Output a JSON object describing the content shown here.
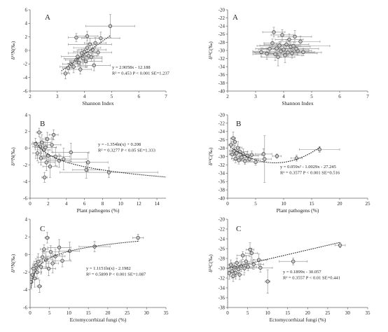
{
  "chart_data": [
    {
      "id": "nA",
      "type": "scatter",
      "panel_label": "A",
      "xlabel": "Shannon Index",
      "ylabel": "δ¹⁵N(‰)",
      "xlim": [
        2,
        7
      ],
      "ylim": [
        -6,
        6
      ],
      "xticks": [
        2,
        3,
        4,
        5,
        6,
        7
      ],
      "yticks": [
        -6,
        -4,
        -2,
        0,
        2,
        4,
        6
      ],
      "annotations": [
        "y = 2.9058x - 12.188",
        "R² = 0.453 P < 0.001 SE=1.237"
      ],
      "trend": {
        "kind": "linear",
        "a": 2.9058,
        "b": -12.188,
        "x_from": 3.15,
        "x_to": 4.95
      },
      "points": [
        {
          "x": 3.3,
          "y": -3.4,
          "xe": 0.15,
          "ye": 0.8
        },
        {
          "x": 3.4,
          "y": -2.6,
          "xe": 0.2,
          "ye": 0.7
        },
        {
          "x": 3.5,
          "y": -2.0,
          "xe": 0.3,
          "ye": 0.6
        },
        {
          "x": 3.6,
          "y": -2.4,
          "xe": 0.5,
          "ye": 0.9
        },
        {
          "x": 3.7,
          "y": -1.4,
          "xe": 0.4,
          "ye": 0.5
        },
        {
          "x": 3.75,
          "y": -0.9,
          "xe": 0.6,
          "ye": 1.0
        },
        {
          "x": 3.8,
          "y": -1.8,
          "xe": 0.3,
          "ye": 0.6
        },
        {
          "x": 3.85,
          "y": -2.8,
          "xe": 0.4,
          "ye": 0.7
        },
        {
          "x": 3.9,
          "y": -0.4,
          "xe": 0.5,
          "ye": 0.6
        },
        {
          "x": 3.95,
          "y": -1.2,
          "xe": 0.7,
          "ye": 0.8
        },
        {
          "x": 4.0,
          "y": -0.2,
          "xe": 0.4,
          "ye": 0.5
        },
        {
          "x": 4.05,
          "y": -1.6,
          "xe": 0.6,
          "ye": 0.9
        },
        {
          "x": 4.1,
          "y": 0.4,
          "xe": 0.5,
          "ye": 0.7
        },
        {
          "x": 4.15,
          "y": -0.8,
          "xe": 0.3,
          "ye": 0.5
        },
        {
          "x": 4.2,
          "y": 0.9,
          "xe": 0.8,
          "ye": 0.9
        },
        {
          "x": 4.25,
          "y": -1.0,
          "xe": 0.4,
          "ye": 0.6
        },
        {
          "x": 4.3,
          "y": 0.1,
          "xe": 0.5,
          "ye": 0.7
        },
        {
          "x": 4.35,
          "y": -2.2,
          "xe": 0.6,
          "ye": 0.8
        },
        {
          "x": 4.4,
          "y": 1.1,
          "xe": 0.4,
          "ye": 0.8
        },
        {
          "x": 4.5,
          "y": -0.3,
          "xe": 0.5,
          "ye": 0.5
        },
        {
          "x": 3.7,
          "y": 1.9,
          "xe": 0.3,
          "ye": 0.6
        },
        {
          "x": 4.1,
          "y": 2.1,
          "xe": 0.4,
          "ye": 0.7
        },
        {
          "x": 4.6,
          "y": 1.8,
          "xe": 0.7,
          "ye": 0.9
        },
        {
          "x": 4.95,
          "y": 3.6,
          "xe": 0.9,
          "ye": 1.7
        }
      ]
    },
    {
      "id": "cA",
      "type": "scatter",
      "panel_label": "A",
      "xlabel": "Shannon Index",
      "ylabel": "δ¹³C(‰)",
      "xlim": [
        2,
        7
      ],
      "ylim": [
        -40,
        -20
      ],
      "xticks": [
        2,
        3,
        4,
        5,
        6,
        7
      ],
      "yticks": [
        -40,
        -38,
        -36,
        -34,
        -32,
        -30,
        -28,
        -26,
        -24,
        -22,
        -20
      ],
      "annotations": [],
      "points": [
        {
          "x": 3.2,
          "y": -30.4,
          "xe": 0.3,
          "ye": 1.0
        },
        {
          "x": 3.4,
          "y": -30.8,
          "xe": 0.4,
          "ye": 1.4
        },
        {
          "x": 3.5,
          "y": -29.6,
          "xe": 0.5,
          "ye": 0.8
        },
        {
          "x": 3.6,
          "y": -28.2,
          "xe": 0.3,
          "ye": 1.0
        },
        {
          "x": 3.7,
          "y": -30.9,
          "xe": 0.8,
          "ye": 1.6
        },
        {
          "x": 3.75,
          "y": -29.5,
          "xe": 0.5,
          "ye": 1.2
        },
        {
          "x": 3.8,
          "y": -31.6,
          "xe": 0.6,
          "ye": 2.2
        },
        {
          "x": 3.85,
          "y": -28.8,
          "xe": 0.7,
          "ye": 1.0
        },
        {
          "x": 3.9,
          "y": -30.2,
          "xe": 1.0,
          "ye": 1.5
        },
        {
          "x": 3.95,
          "y": -26.2,
          "xe": 0.4,
          "ye": 1.3
        },
        {
          "x": 4.0,
          "y": -29.8,
          "xe": 0.9,
          "ye": 1.2
        },
        {
          "x": 4.05,
          "y": -31.2,
          "xe": 0.6,
          "ye": 1.8
        },
        {
          "x": 4.1,
          "y": -28.5,
          "xe": 0.8,
          "ye": 1.1
        },
        {
          "x": 4.15,
          "y": -30.5,
          "xe": 1.2,
          "ye": 0.9
        },
        {
          "x": 4.2,
          "y": -27.3,
          "xe": 0.5,
          "ye": 1.4
        },
        {
          "x": 4.25,
          "y": -29.1,
          "xe": 0.7,
          "ye": 1.0
        },
        {
          "x": 4.3,
          "y": -30.7,
          "xe": 0.9,
          "ye": 1.2
        },
        {
          "x": 4.35,
          "y": -28.9,
          "xe": 1.3,
          "ye": 1.1
        },
        {
          "x": 4.4,
          "y": -26.6,
          "xe": 0.6,
          "ye": 1.5
        },
        {
          "x": 4.5,
          "y": -30.1,
          "xe": 0.5,
          "ye": 1.0
        },
        {
          "x": 4.6,
          "y": -27.8,
          "xe": 0.7,
          "ye": 1.3
        },
        {
          "x": 4.7,
          "y": -30.4,
          "xe": 0.4,
          "ye": 0.9
        },
        {
          "x": 3.65,
          "y": -25.5,
          "xe": 0.4,
          "ye": 1.2
        },
        {
          "x": 4.45,
          "y": -29.6,
          "xe": 0.8,
          "ye": 0.8
        }
      ]
    },
    {
      "id": "nB",
      "type": "scatter",
      "panel_label": "B",
      "xlabel": "Plant pathogens (%)",
      "ylabel": "δ¹⁵N(‰)",
      "xlim": [
        0,
        15
      ],
      "ylim": [
        -6,
        4
      ],
      "xticks": [
        0,
        2,
        4,
        6,
        8,
        10,
        12,
        14
      ],
      "yticks": [
        -6,
        -4,
        -2,
        0,
        2,
        4
      ],
      "annotations": [
        "y = -1.354ln(x) + 0.208",
        "R² = 0.3277 P < 0.05 SE=1.333"
      ],
      "trend": {
        "kind": "log",
        "a": -1.354,
        "b": 0.208,
        "x_from": 0.65,
        "x_to": 15
      },
      "points": [
        {
          "x": 0.6,
          "y": 0.5,
          "xe": 0.4,
          "ye": 0.7
        },
        {
          "x": 0.8,
          "y": -0.6,
          "xe": 0.5,
          "ye": 0.9
        },
        {
          "x": 1.0,
          "y": 1.9,
          "xe": 0.3,
          "ye": 0.5
        },
        {
          "x": 1.1,
          "y": 0.2,
          "xe": 0.8,
          "ye": 1.1
        },
        {
          "x": 1.2,
          "y": -1.2,
          "xe": 0.6,
          "ye": 0.8
        },
        {
          "x": 1.3,
          "y": 0.7,
          "xe": 1.0,
          "ye": 0.9
        },
        {
          "x": 1.5,
          "y": -0.2,
          "xe": 0.7,
          "ye": 1.0
        },
        {
          "x": 1.6,
          "y": -3.5,
          "xe": 0.3,
          "ye": 0.6
        },
        {
          "x": 1.7,
          "y": 0.1,
          "xe": 1.2,
          "ye": 1.2
        },
        {
          "x": 1.8,
          "y": -1.7,
          "xe": 0.9,
          "ye": 1.0
        },
        {
          "x": 1.9,
          "y": 1.1,
          "xe": 0.6,
          "ye": 0.8
        },
        {
          "x": 2.0,
          "y": -0.9,
          "xe": 1.4,
          "ye": 0.7
        },
        {
          "x": 2.2,
          "y": -2.2,
          "xe": 0.8,
          "ye": 1.3
        },
        {
          "x": 2.4,
          "y": 0.4,
          "xe": 1.0,
          "ye": 0.9
        },
        {
          "x": 2.6,
          "y": 1.6,
          "xe": 0.5,
          "ye": 0.6
        },
        {
          "x": 2.8,
          "y": -1.0,
          "xe": 1.6,
          "ye": 1.1
        },
        {
          "x": 3.2,
          "y": -1.5,
          "xe": 1.2,
          "ye": 0.8
        },
        {
          "x": 3.7,
          "y": -1.3,
          "xe": 2.5,
          "ye": 1.3
        },
        {
          "x": 4.5,
          "y": -0.5,
          "xe": 2.0,
          "ye": 1.1
        },
        {
          "x": 6.4,
          "y": -1.7,
          "xe": 2.2,
          "ye": 1.1
        },
        {
          "x": 6.2,
          "y": -2.6,
          "xe": 1.5,
          "ye": 1.0
        },
        {
          "x": 8.7,
          "y": -2.9,
          "xe": 5.4,
          "ye": 0.6
        }
      ]
    },
    {
      "id": "cB",
      "type": "scatter",
      "panel_label": "B",
      "xlabel": "Plant pathogens (%)",
      "ylabel": "δ¹³C(‰)",
      "xlim": [
        0,
        25
      ],
      "ylim": [
        -40,
        -20
      ],
      "xticks": [
        0,
        5,
        10,
        15,
        20,
        25
      ],
      "yticks": [
        -40,
        -38,
        -36,
        -34,
        -32,
        -30,
        -28,
        -26,
        -24,
        -22,
        -20
      ],
      "annotations": [
        "y = 0.059x² - 1.0029x - 27.245",
        "R² = 0.3577 P < 0.001 SE=0.516"
      ],
      "trend": {
        "kind": "quadratic",
        "a": 0.059,
        "b": -1.0029,
        "c": -27.245,
        "x_from": 0.5,
        "x_to": 16.6
      },
      "points": [
        {
          "x": 0.6,
          "y": -27.2,
          "xe": 0.4,
          "ye": 1.6
        },
        {
          "x": 0.8,
          "y": -29.5,
          "xe": 0.5,
          "ye": 1.0
        },
        {
          "x": 1.0,
          "y": -25.6,
          "xe": 0.4,
          "ye": 1.5
        },
        {
          "x": 1.2,
          "y": -28.6,
          "xe": 0.9,
          "ye": 1.2
        },
        {
          "x": 1.4,
          "y": -30.5,
          "xe": 0.7,
          "ye": 1.0
        },
        {
          "x": 1.6,
          "y": -29.2,
          "xe": 1.2,
          "ye": 1.4
        },
        {
          "x": 1.8,
          "y": -27.9,
          "xe": 0.8,
          "ye": 0.9
        },
        {
          "x": 2.0,
          "y": -30.9,
          "xe": 1.0,
          "ye": 0.9
        },
        {
          "x": 2.2,
          "y": -28.8,
          "xe": 1.4,
          "ye": 1.1
        },
        {
          "x": 2.5,
          "y": -30.2,
          "xe": 1.1,
          "ye": 0.8
        },
        {
          "x": 2.8,
          "y": -29.4,
          "xe": 1.6,
          "ye": 1.2
        },
        {
          "x": 3.1,
          "y": -31.1,
          "xe": 1.3,
          "ye": 0.8
        },
        {
          "x": 3.5,
          "y": -29.8,
          "xe": 2.0,
          "ye": 1.0
        },
        {
          "x": 3.9,
          "y": -30.6,
          "xe": 1.5,
          "ye": 0.7
        },
        {
          "x": 4.3,
          "y": -29.6,
          "xe": 1.8,
          "ye": 0.9
        },
        {
          "x": 5.0,
          "y": -31.3,
          "xe": 1.4,
          "ye": 0.8
        },
        {
          "x": 6.4,
          "y": -29.4,
          "xe": 1.5,
          "ye": 1.3
        },
        {
          "x": 6.6,
          "y": -30.6,
          "xe": 1.2,
          "ye": 5.6
        },
        {
          "x": 8.8,
          "y": -29.9,
          "xe": 0.8,
          "ye": 0.5
        },
        {
          "x": 12.3,
          "y": -30.4,
          "xe": 1.0,
          "ye": 0.7
        },
        {
          "x": 16.4,
          "y": -28.3,
          "xe": 3.6,
          "ye": 0.7
        },
        {
          "x": 1.3,
          "y": -26.5,
          "xe": 0.6,
          "ye": 1.0
        }
      ]
    },
    {
      "id": "nC",
      "type": "scatter",
      "panel_label": "C",
      "xlabel": "Ectomycorrhizal fungi (%)",
      "ylabel": "δ¹⁵N(‰)",
      "xlim": [
        0,
        35
      ],
      "ylim": [
        -6,
        4
      ],
      "xticks": [
        0,
        5,
        10,
        15,
        20,
        25,
        30,
        35
      ],
      "yticks": [
        -6,
        -4,
        -2,
        0,
        2,
        4
      ],
      "annotations": [
        "y = 1.1151ln(x) - 2.1982",
        "R² = 0.5899 P < 0.001 SE=1.087"
      ],
      "trend": {
        "kind": "log",
        "a": 1.1151,
        "b": -2.1982,
        "x_from": 0.25,
        "x_to": 28
      },
      "points": [
        {
          "x": 0.3,
          "y": -3.1,
          "xe": 0.3,
          "ye": 0.8
        },
        {
          "x": 0.6,
          "y": -2.3,
          "xe": 0.5,
          "ye": 0.9
        },
        {
          "x": 0.9,
          "y": -1.6,
          "xe": 0.7,
          "ye": 0.6
        },
        {
          "x": 1.2,
          "y": -2.7,
          "xe": 1.0,
          "ye": 1.0
        },
        {
          "x": 1.5,
          "y": -1.2,
          "xe": 0.8,
          "ye": 0.7
        },
        {
          "x": 1.8,
          "y": -2.0,
          "xe": 1.2,
          "ye": 0.8
        },
        {
          "x": 2.1,
          "y": -0.8,
          "xe": 1.1,
          "ye": 0.9
        },
        {
          "x": 2.4,
          "y": -3.6,
          "xe": 0.6,
          "ye": 0.7
        },
        {
          "x": 2.8,
          "y": -1.4,
          "xe": 1.5,
          "ye": 0.8
        },
        {
          "x": 3.2,
          "y": -0.3,
          "xe": 1.4,
          "ye": 0.7
        },
        {
          "x": 3.6,
          "y": 0.6,
          "xe": 1.0,
          "ye": 0.5
        },
        {
          "x": 4.1,
          "y": -0.6,
          "xe": 1.6,
          "ye": 0.9
        },
        {
          "x": 4.4,
          "y": 1.9,
          "xe": 0.6,
          "ye": 0.6
        },
        {
          "x": 4.8,
          "y": -1.6,
          "xe": 1.8,
          "ye": 0.8
        },
        {
          "x": 5.3,
          "y": 0.3,
          "xe": 2.0,
          "ye": 0.7
        },
        {
          "x": 5.8,
          "y": -1.0,
          "xe": 1.5,
          "ye": 1.1
        },
        {
          "x": 6.5,
          "y": -0.2,
          "xe": 2.5,
          "ye": 0.8
        },
        {
          "x": 7.5,
          "y": 0.8,
          "xe": 3.0,
          "ye": 0.9
        },
        {
          "x": 8.3,
          "y": -0.7,
          "xe": 2.2,
          "ye": 0.7
        },
        {
          "x": 10.2,
          "y": 0.4,
          "xe": 2.5,
          "ye": 1.0
        },
        {
          "x": 16.6,
          "y": 0.9,
          "xe": 4.0,
          "ye": 0.6
        },
        {
          "x": 27.8,
          "y": 1.9,
          "xe": 1.4,
          "ye": 0.4
        }
      ]
    },
    {
      "id": "cC",
      "type": "scatter",
      "panel_label": "C",
      "xlabel": "Ectomycorrhizal fungi (%)",
      "ylabel": "δ¹³C(‰)",
      "xlim": [
        0,
        35
      ],
      "ylim": [
        -38,
        -20
      ],
      "xticks": [
        0,
        5,
        10,
        15,
        20,
        25,
        30,
        35
      ],
      "yticks": [
        -38,
        -36,
        -34,
        -32,
        -30,
        -28,
        -26,
        -24,
        -22,
        -20
      ],
      "annotations": [
        "y = 0.1899x - 30.057",
        "R² = 0.3557 P < 0.01 SE=0.441"
      ],
      "trend": {
        "kind": "linear",
        "a": 0.1899,
        "b": -30.057,
        "x_from": 0,
        "x_to": 28.2
      },
      "points": [
        {
          "x": 0.4,
          "y": -31.0,
          "xe": 0.4,
          "ye": 1.2
        },
        {
          "x": 0.8,
          "y": -29.3,
          "xe": 0.6,
          "ye": 1.0
        },
        {
          "x": 1.1,
          "y": -30.6,
          "xe": 0.9,
          "ye": 1.4
        },
        {
          "x": 1.4,
          "y": -31.6,
          "xe": 0.8,
          "ye": 1.1
        },
        {
          "x": 1.7,
          "y": -29.8,
          "xe": 1.2,
          "ye": 0.9
        },
        {
          "x": 2.0,
          "y": -30.9,
          "xe": 1.0,
          "ye": 1.3
        },
        {
          "x": 2.3,
          "y": -28.9,
          "xe": 1.4,
          "ye": 1.0
        },
        {
          "x": 2.7,
          "y": -30.2,
          "xe": 1.6,
          "ye": 0.8
        },
        {
          "x": 3.0,
          "y": -31.3,
          "xe": 1.2,
          "ye": 1.0
        },
        {
          "x": 3.4,
          "y": -29.5,
          "xe": 1.8,
          "ye": 1.2
        },
        {
          "x": 3.8,
          "y": -27.4,
          "xe": 1.5,
          "ye": 0.8
        },
        {
          "x": 4.2,
          "y": -30.0,
          "xe": 2.0,
          "ye": 0.9
        },
        {
          "x": 4.6,
          "y": -28.6,
          "xe": 1.6,
          "ye": 1.1
        },
        {
          "x": 5.1,
          "y": -29.7,
          "xe": 2.2,
          "ye": 0.8
        },
        {
          "x": 5.6,
          "y": -26.2,
          "xe": 1.0,
          "ye": 1.4
        },
        {
          "x": 6.0,
          "y": -26.9,
          "xe": 1.5,
          "ye": 1.0
        },
        {
          "x": 6.5,
          "y": -29.2,
          "xe": 2.5,
          "ye": 1.0
        },
        {
          "x": 7.8,
          "y": -28.3,
          "xe": 2.0,
          "ye": 1.2
        },
        {
          "x": 8.2,
          "y": -29.9,
          "xe": 3.0,
          "ye": 0.9
        },
        {
          "x": 10.0,
          "y": -32.7,
          "xe": 0.6,
          "ye": 2.4
        },
        {
          "x": 16.4,
          "y": -28.6,
          "xe": 3.5,
          "ye": 0.7
        },
        {
          "x": 28.1,
          "y": -25.3,
          "xe": 1.3,
          "ye": 0.5
        }
      ]
    }
  ]
}
